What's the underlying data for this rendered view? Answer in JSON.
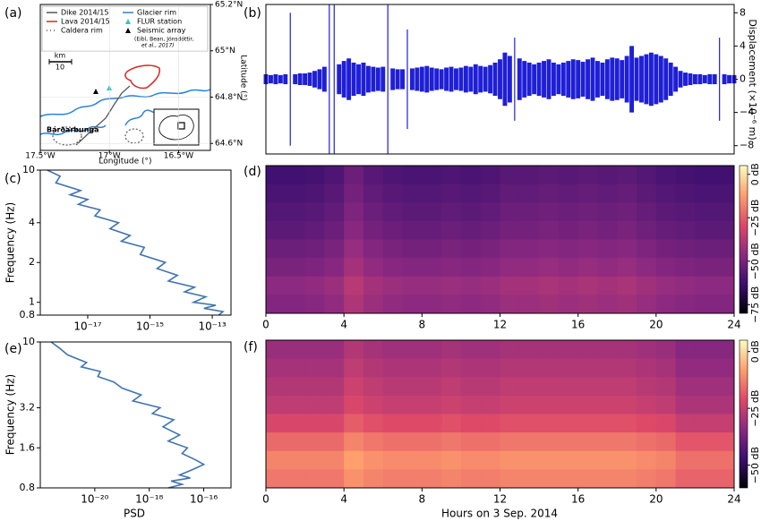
{
  "chart_data": [
    {
      "type": "map",
      "panel_label": "(a)",
      "xlabel": "Longitude (°)",
      "ylabel": "Latitude (°)",
      "xlim": [
        -17.5,
        -16.27
      ],
      "ylim": [
        64.57,
        65.2
      ],
      "xticks": [
        {
          "value": -17.5,
          "label": "17.5°W"
        },
        {
          "value": -17,
          "label": "17°W"
        },
        {
          "value": -16.5,
          "label": "16.5°W"
        }
      ],
      "yticks": [
        {
          "value": 65.2,
          "label": "65.2°N"
        },
        {
          "value": 65,
          "label": "65°N"
        },
        {
          "value": 64.8,
          "label": "64.8°N"
        },
        {
          "value": 64.6,
          "label": "64.6°N"
        }
      ],
      "legend": [
        {
          "label": "Dike 2014/15",
          "color": "#555555",
          "marker": "line"
        },
        {
          "label": "Lava 2014/15",
          "color": "#d62728",
          "marker": "line"
        },
        {
          "label": "Caldera rim",
          "color": "#555555",
          "marker": "dots"
        },
        {
          "label": "Glacier rim",
          "color": "#2b83d6",
          "marker": "line"
        },
        {
          "label": "FLUR station",
          "color": "#2ec4c4",
          "marker": "triangle"
        },
        {
          "label": "Seismic array",
          "color": "#000000",
          "marker": "triangle"
        }
      ],
      "citation": [
        "(Eibl, Bean, Jónsdóttir,",
        "et al., 2017)"
      ],
      "scale_bar": {
        "label": "km",
        "length": 10
      },
      "place": "Bárðarbunga"
    },
    {
      "type": "waveform",
      "panel_label": "(b)",
      "ylabel": "Displacement (×10⁻⁶ m)",
      "color": "#1f1fd6",
      "xlim": [
        0,
        24
      ],
      "ylim": [
        -9,
        9
      ],
      "yticks": [
        8,
        4,
        0,
        {
          "value": -4,
          "label": "−4"
        },
        {
          "value": -8,
          "label": "−8"
        }
      ],
      "x": [
        0,
        0.25,
        0.5,
        0.75,
        1,
        1.25,
        1.5,
        1.75,
        2,
        2.25,
        2.5,
        2.75,
        3,
        3.25,
        3.5,
        3.75,
        4,
        4.25,
        4.5,
        4.75,
        5,
        5.25,
        5.5,
        5.75,
        6,
        6.25,
        6.5,
        6.75,
        7,
        7.25,
        7.5,
        7.75,
        8,
        8.25,
        8.5,
        8.75,
        9,
        9.25,
        9.5,
        9.75,
        10,
        10.25,
        10.5,
        10.75,
        11,
        11.25,
        11.5,
        11.75,
        12,
        12.25,
        12.5,
        12.75,
        13,
        13.25,
        13.5,
        13.75,
        14,
        14.25,
        14.5,
        14.75,
        15,
        15.25,
        15.5,
        15.75,
        16,
        16.25,
        16.5,
        16.75,
        17,
        17.25,
        17.5,
        17.75,
        18,
        18.25,
        18.5,
        18.75,
        19,
        19.25,
        19.5,
        19.75,
        20,
        20.25,
        20.5,
        20.75,
        21,
        21.25,
        21.5,
        21.75,
        22,
        22.25,
        22.5,
        22.75,
        23,
        23.25,
        23.5,
        23.75,
        24
      ],
      "values": [
        0.6,
        0.5,
        0.6,
        0.5,
        0.6,
        8,
        0.6,
        0.7,
        0.7,
        0.8,
        1.0,
        1.2,
        1.5,
        9,
        9,
        1.8,
        2.2,
        2.5,
        2.0,
        1.8,
        2.0,
        1.6,
        1.5,
        1.4,
        1.5,
        9,
        1.3,
        1.2,
        1.2,
        6,
        1.3,
        1.4,
        1.5,
        1.6,
        1.4,
        1.3,
        1.2,
        1.4,
        1.5,
        1.3,
        1.4,
        1.6,
        1.5,
        1.8,
        1.6,
        1.5,
        1.7,
        2.0,
        2.4,
        3.2,
        2.8,
        5,
        2.5,
        2.2,
        2.0,
        1.8,
        2.0,
        2.2,
        2.4,
        2.0,
        1.8,
        2.0,
        2.2,
        2.4,
        2.3,
        2.1,
        2.4,
        2.6,
        2.2,
        2.0,
        2.4,
        2.6,
        2.5,
        2.3,
        2.8,
        4,
        2.6,
        2.8,
        3.0,
        3.2,
        3.0,
        2.8,
        2.5,
        2.0,
        1.5,
        1.0,
        0.8,
        0.7,
        0.6,
        0.6,
        0.5,
        0.6,
        0.6,
        5,
        0.6,
        0.5,
        0.5
      ]
    },
    {
      "type": "psd",
      "panel_label": "(c)",
      "ylabel": "Frequency (Hz)",
      "color": "#3f74b0",
      "xscale": "log",
      "yscale": "log",
      "xlim": [
        3e-19,
        4e-13
      ],
      "ylim": [
        0.8,
        10
      ],
      "xticks": [
        {
          "value": 1e-17,
          "label": "10⁻¹⁷"
        },
        {
          "value": 1e-15,
          "label": "10⁻¹⁵"
        },
        {
          "value": 1e-13,
          "label": "10⁻¹³"
        }
      ],
      "yticks": [
        10,
        4,
        2,
        1,
        0.8
      ],
      "y": [
        10,
        9,
        8,
        7,
        6.5,
        6,
        5.5,
        5,
        4.5,
        4,
        3.6,
        3.2,
        2.9,
        2.6,
        2.3,
        2,
        1.8,
        1.6,
        1.45,
        1.3,
        1.2,
        1.1,
        1,
        0.95,
        0.9,
        0.85,
        0.8
      ],
      "values": [
        5e-19,
        1.3e-18,
        9.5e-19,
        5.9e-18,
        2.7e-18,
        1e-17,
        5e-18,
        2.5e-17,
        1.7e-17,
        9.8e-17,
        5.2e-17,
        2.3e-16,
        1.2e-16,
        6.6e-16,
        4.9e-16,
        3.1e-15,
        1.7e-15,
        7.6e-15,
        3.9e-15,
        2.7e-14,
        1.3e-14,
        6.2e-14,
        2.5e-14,
        1.3e-13,
        5.4e-14,
        2.2e-13,
        1.6e-13
      ]
    },
    {
      "type": "heatmap",
      "panel_label": "(d)",
      "xlim": [
        0,
        24
      ],
      "xticks": [
        0,
        4,
        8,
        12,
        16,
        20,
        24
      ],
      "colormap": [
        "#000004",
        "#3b0f70",
        "#8c2981",
        "#de4968",
        "#fe9f6d",
        "#fcfdbf"
      ],
      "clim": [
        -80,
        5
      ],
      "cticks": [
        {
          "value": 0,
          "label": "0 dB"
        },
        {
          "value": -25,
          "label": "−25 dB"
        },
        {
          "value": -50,
          "label": "−50 dB"
        },
        {
          "value": -75,
          "label": "−75 dB"
        }
      ],
      "values": [
        [
          -62,
          -62,
          -61,
          -59,
          -53,
          -57,
          -59,
          -60,
          -60,
          -59,
          -60,
          -59,
          -57,
          -57,
          -56,
          -57,
          -56,
          -57,
          -56,
          -58,
          -60,
          -61,
          -62,
          -62
        ],
        [
          -60,
          -60,
          -59,
          -57,
          -51,
          -55,
          -57,
          -58,
          -58,
          -57,
          -58,
          -57,
          -55,
          -55,
          -54,
          -55,
          -54,
          -55,
          -54,
          -56,
          -58,
          -59,
          -60,
          -60
        ],
        [
          -58,
          -58,
          -57,
          -55,
          -49,
          -53,
          -55,
          -56,
          -56,
          -55,
          -56,
          -55,
          -53,
          -53,
          -52,
          -53,
          -52,
          -53,
          -52,
          -54,
          -56,
          -57,
          -58,
          -58
        ],
        [
          -56,
          -56,
          -55,
          -53,
          -47,
          -51,
          -53,
          -54,
          -54,
          -53,
          -54,
          -53,
          -51,
          -51,
          -50,
          -51,
          -50,
          -51,
          -50,
          -52,
          -54,
          -55,
          -56,
          -56
        ],
        [
          -53,
          -53,
          -52,
          -50,
          -44,
          -48,
          -50,
          -51,
          -51,
          -50,
          -51,
          -50,
          -48,
          -48,
          -47,
          -48,
          -47,
          -48,
          -47,
          -49,
          -51,
          -52,
          -53,
          -53
        ],
        [
          -50,
          -50,
          -49,
          -47,
          -41,
          -45,
          -47,
          -48,
          -48,
          -47,
          -48,
          -47,
          -45,
          -45,
          -44,
          -45,
          -44,
          -45,
          -44,
          -46,
          -48,
          -49,
          -50,
          -50
        ],
        [
          -46,
          -46,
          -45,
          -43,
          -37,
          -41,
          -43,
          -44,
          -44,
          -43,
          -44,
          -43,
          -41,
          -41,
          -40,
          -41,
          -40,
          -41,
          -40,
          -42,
          -44,
          -45,
          -46,
          -46
        ],
        [
          -48,
          -48,
          -47,
          -45,
          -39,
          -43,
          -45,
          -46,
          -46,
          -45,
          -46,
          -45,
          -43,
          -43,
          -42,
          -43,
          -42,
          -43,
          -42,
          -44,
          -46,
          -47,
          -48,
          -48
        ]
      ]
    },
    {
      "type": "psd",
      "panel_label": "(e)",
      "ylabel": "Frequency (Hz)",
      "xlabel": "PSD",
      "color": "#3f74b0",
      "xscale": "log",
      "yscale": "log",
      "xlim": [
        1e-22,
        1e-15
      ],
      "ylim": [
        0.8,
        10
      ],
      "xticks": [
        {
          "value": 1e-20,
          "label": "10⁻²⁰"
        },
        {
          "value": 1e-18,
          "label": "10⁻¹⁸"
        },
        {
          "value": 1e-16,
          "label": "10⁻¹⁶"
        }
      ],
      "yticks": [
        10,
        3.2,
        1.6,
        0.8
      ],
      "y": [
        10,
        9,
        8,
        7,
        6.5,
        6,
        5.5,
        5,
        4.5,
        4,
        3.6,
        3.2,
        2.9,
        2.6,
        2.3,
        2,
        1.8,
        1.6,
        1.45,
        1.3,
        1.2,
        1.1,
        1,
        0.95,
        0.9,
        0.85,
        0.8
      ],
      "values": [
        2.5e-22,
        5e-22,
        1e-21,
        5e-21,
        3.2e-21,
        1.6e-20,
        1.3e-20,
        5e-20,
        1e-19,
        5e-19,
        2.5e-19,
        2.5e-18,
        1.3e-18,
        7.9e-18,
        3.2e-18,
        1.3e-17,
        5e-18,
        2.5e-17,
        1.6e-17,
        5e-17,
        1e-16,
        4e-17,
        1.3e-17,
        3.2e-17,
        6.3e-18,
        1.6e-17,
        5e-18
      ]
    },
    {
      "type": "heatmap",
      "panel_label": "(f)",
      "xlabel": "Hours on 3 Sep. 2014",
      "xlim": [
        0,
        24
      ],
      "xticks": [
        0,
        4,
        8,
        12,
        16,
        20,
        24
      ],
      "colormap": [
        "#000004",
        "#3b0f70",
        "#8c2981",
        "#de4968",
        "#fe9f6d",
        "#fcfdbf"
      ],
      "clim": [
        -60,
        5
      ],
      "cticks": [
        {
          "value": 0,
          "label": "0 dB"
        },
        {
          "value": -25,
          "label": "−25 dB"
        },
        {
          "value": -50,
          "label": "−50 dB"
        }
      ],
      "values": [
        [
          -32,
          -32,
          -32,
          -32,
          -28,
          -30,
          -31,
          -31,
          -31,
          -30,
          -31,
          -31,
          -30,
          -30,
          -30,
          -30,
          -30,
          -30,
          -30,
          -31,
          -32,
          -35,
          -35,
          -35
        ],
        [
          -30,
          -30,
          -30,
          -30,
          -26,
          -28,
          -29,
          -29,
          -29,
          -28,
          -29,
          -29,
          -28,
          -28,
          -28,
          -28,
          -28,
          -28,
          -28,
          -29,
          -30,
          -33,
          -33,
          -33
        ],
        [
          -28,
          -28,
          -28,
          -28,
          -24,
          -26,
          -27,
          -27,
          -27,
          -26,
          -27,
          -27,
          -26,
          -26,
          -26,
          -26,
          -26,
          -26,
          -26,
          -27,
          -28,
          -31,
          -31,
          -31
        ],
        [
          -26,
          -26,
          -26,
          -26,
          -22,
          -24,
          -25,
          -25,
          -25,
          -24,
          -25,
          -25,
          -24,
          -24,
          -24,
          -24,
          -24,
          -24,
          -24,
          -25,
          -26,
          -29,
          -29,
          -29
        ],
        [
          -22,
          -22,
          -22,
          -22,
          -18,
          -20,
          -21,
          -21,
          -21,
          -20,
          -21,
          -21,
          -20,
          -20,
          -20,
          -20,
          -20,
          -20,
          -20,
          -21,
          -22,
          -25,
          -25,
          -25
        ],
        [
          -16,
          -16,
          -16,
          -16,
          -12,
          -14,
          -15,
          -15,
          -15,
          -14,
          -15,
          -15,
          -14,
          -14,
          -14,
          -14,
          -14,
          -14,
          -14,
          -15,
          -16,
          -19,
          -19,
          -19
        ],
        [
          -12,
          -12,
          -12,
          -12,
          -8,
          -10,
          -11,
          -11,
          -11,
          -10,
          -11,
          -11,
          -10,
          -10,
          -10,
          -10,
          -10,
          -10,
          -10,
          -11,
          -12,
          -15,
          -15,
          -15
        ],
        [
          -14,
          -14,
          -14,
          -14,
          -10,
          -12,
          -13,
          -13,
          -13,
          -12,
          -13,
          -13,
          -12,
          -12,
          -12,
          -12,
          -12,
          -12,
          -12,
          -13,
          -14,
          -17,
          -17,
          -17
        ]
      ]
    }
  ]
}
